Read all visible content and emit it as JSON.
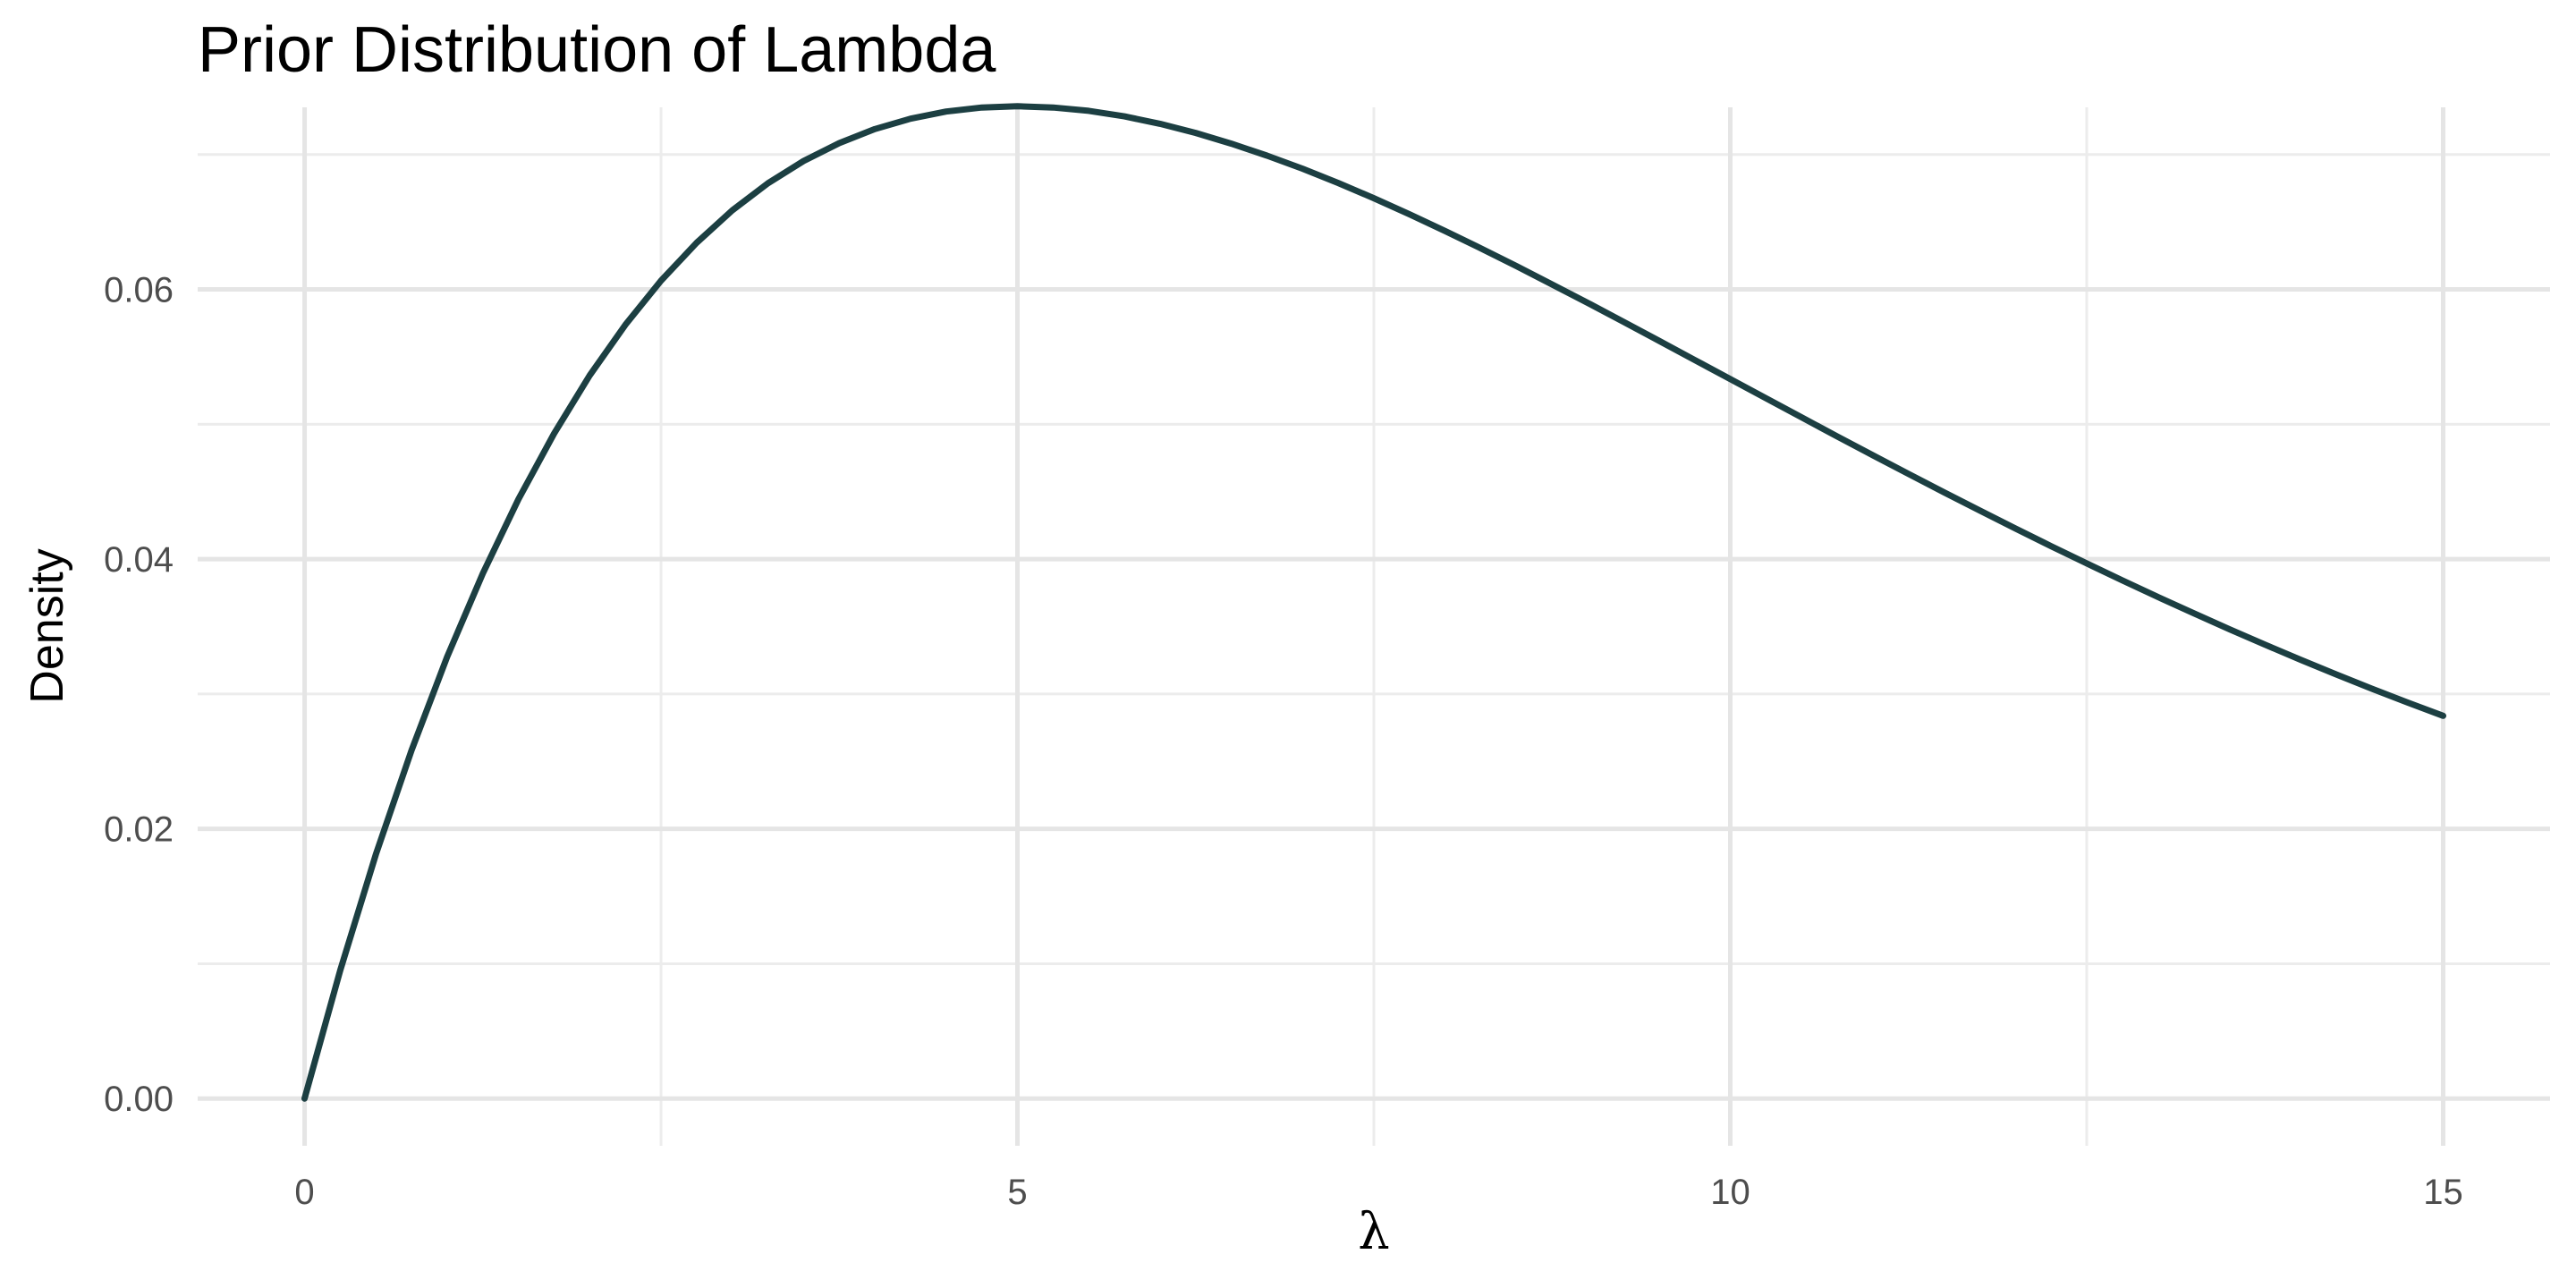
{
  "chart_data": {
    "type": "line",
    "title": "Prior Distribution of Lambda",
    "xlabel": "λ",
    "ylabel": "Density",
    "xlim": [
      -0.75,
      15.75
    ],
    "ylim": [
      -0.0035,
      0.0735
    ],
    "x_ticks": [
      0,
      5,
      10,
      15
    ],
    "x_tick_labels": [
      "0",
      "5",
      "10",
      "15"
    ],
    "x_minor_ticks": [
      2.5,
      7.5,
      12.5
    ],
    "y_ticks": [
      0,
      0.02,
      0.04,
      0.06
    ],
    "y_tick_labels": [
      "0.00",
      "0.02",
      "0.04",
      "0.06"
    ],
    "y_minor_ticks": [
      0.01,
      0.03,
      0.05,
      0.07
    ],
    "grid": true,
    "legend": "none",
    "series": [
      {
        "color": "#1c3f42",
        "x": [
          0,
          0.25,
          0.5,
          0.75,
          1,
          1.25,
          1.5,
          1.75,
          2,
          2.25,
          2.5,
          2.75,
          3,
          3.25,
          3.5,
          3.75,
          4,
          4.25,
          4.5,
          4.75,
          5,
          5.25,
          5.5,
          5.75,
          6,
          6.25,
          6.5,
          6.75,
          7,
          7.25,
          7.5,
          7.75,
          8,
          8.25,
          8.5,
          8.75,
          9,
          9.25,
          9.5,
          9.75,
          10,
          10.25,
          10.5,
          10.75,
          11,
          11.25,
          11.5,
          11.75,
          12,
          12.25,
          12.5,
          12.75,
          13,
          13.25,
          13.5,
          13.75,
          14,
          14.25,
          14.5,
          14.75,
          15
        ],
        "y": [
          0,
          0.00951,
          0.0181,
          0.02582,
          0.03275,
          0.03894,
          0.04444,
          0.04931,
          0.05362,
          0.05738,
          0.06065,
          0.06346,
          0.06586,
          0.06787,
          0.06952,
          0.07085,
          0.07189,
          0.07266,
          0.07319,
          0.07349,
          0.07358,
          0.07349,
          0.07324,
          0.07283,
          0.07228,
          0.0716,
          0.07081,
          0.06992,
          0.06895,
          0.06789,
          0.06676,
          0.06557,
          0.06433,
          0.06305,
          0.06173,
          0.06037,
          0.059,
          0.0576,
          0.05619,
          0.05477,
          0.05335,
          0.05193,
          0.05051,
          0.0491,
          0.0477,
          0.04632,
          0.04495,
          0.0436,
          0.04227,
          0.04096,
          0.03968,
          0.03842,
          0.03719,
          0.03599,
          0.03481,
          0.03366,
          0.03254,
          0.03145,
          0.03039,
          0.02937,
          0.02838
        ]
      }
    ]
  }
}
